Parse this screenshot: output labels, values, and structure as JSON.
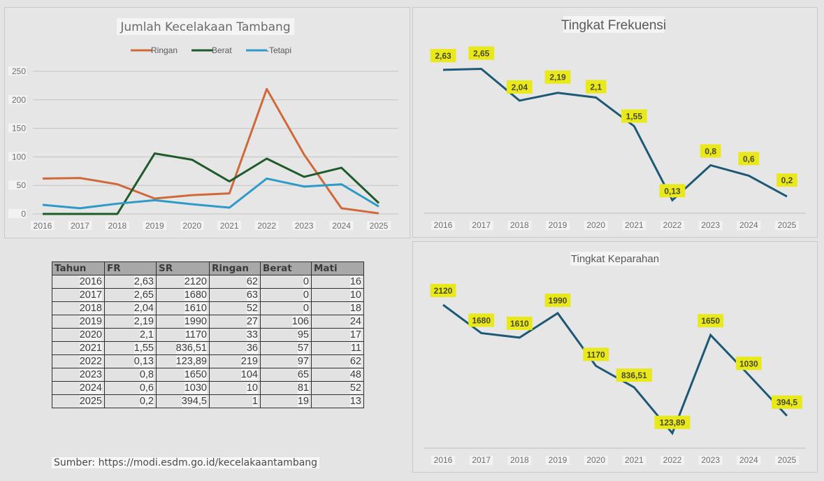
{
  "chart_data": [
    {
      "id": "jumlah",
      "type": "line",
      "title": "Jumlah Kecelakaan Tambang",
      "xlabel": "",
      "ylabel": "",
      "categories": [
        "2016",
        "2017",
        "2018",
        "2019",
        "2020",
        "2021",
        "2022",
        "2023",
        "2024",
        "2025"
      ],
      "ylim": [
        0,
        250
      ],
      "yticks": [
        "0",
        "50",
        "100",
        "150",
        "200",
        "250"
      ],
      "grid": true,
      "legend_position": "top",
      "series": [
        {
          "name": "Ringan",
          "color": "#d0693a",
          "values": [
            62,
            63,
            52,
            27,
            33,
            36,
            219,
            104,
            10,
            1
          ]
        },
        {
          "name": "Berat",
          "color": "#1f5a2a",
          "values": [
            0,
            0,
            0,
            106,
            95,
            57,
            97,
            65,
            81,
            19
          ]
        },
        {
          "name": "-Tetapi",
          "color": "#2e9ac8",
          "values": [
            16,
            10,
            18,
            24,
            17,
            11,
            62,
            48,
            52,
            13
          ]
        }
      ]
    },
    {
      "id": "frekuensi",
      "type": "line",
      "title": "Tingkat Frekuensi",
      "xlabel": "",
      "ylabel": "",
      "categories": [
        "2016",
        "2017",
        "2018",
        "2019",
        "2020",
        "2021",
        "2022",
        "2023",
        "2024",
        "2025"
      ],
      "grid": false,
      "legend_position": "none",
      "series": [
        {
          "name": "FR",
          "color": "#1d5874",
          "values": [
            2.63,
            2.65,
            2.04,
            2.19,
            2.1,
            1.55,
            0.13,
            0.8,
            0.6,
            0.2
          ],
          "labels": [
            "2,63",
            "2,65",
            "2,04",
            "2,19",
            "2,1",
            "1,55",
            "0,13",
            "0,8",
            "0,6",
            "0,2"
          ]
        }
      ]
    },
    {
      "id": "keparahan",
      "type": "line",
      "title": "Tingkat Keparahan",
      "xlabel": "",
      "ylabel": "",
      "categories": [
        "2016",
        "2017",
        "2018",
        "2019",
        "2020",
        "2021",
        "2022",
        "2023",
        "2024",
        "2025"
      ],
      "grid": false,
      "legend_position": "none",
      "series": [
        {
          "name": "SR",
          "color": "#1d5874",
          "values": [
            2120,
            1680,
            1610,
            1990,
            1170,
            836.51,
            123.89,
            1650,
            1030,
            394.5
          ],
          "labels": [
            "2120",
            "1680",
            "1610",
            "1990",
            "1170",
            "836,51",
            "123,89",
            "1650",
            "1030",
            "394,5"
          ]
        }
      ]
    }
  ],
  "label_highlight_color": "#e8e81a",
  "table": {
    "headers": [
      "Tahun",
      "FR",
      "SR",
      "Ringan",
      "Berat",
      "Mati"
    ],
    "rows": [
      [
        "2016",
        "2,63",
        "2120",
        "62",
        "0",
        "16"
      ],
      [
        "2017",
        "2,65",
        "1680",
        "63",
        "0",
        "10"
      ],
      [
        "2018",
        "2,04",
        "1610",
        "52",
        "0",
        "18"
      ],
      [
        "2019",
        "2,19",
        "1990",
        "27",
        "106",
        "24"
      ],
      [
        "2020",
        "2,1",
        "1170",
        "33",
        "95",
        "17"
      ],
      [
        "2021",
        "1,55",
        "836,51",
        "36",
        "57",
        "11"
      ],
      [
        "2022",
        "0,13",
        "123,89",
        "219",
        "97",
        "62"
      ],
      [
        "2023",
        "0,8",
        "1650",
        "104",
        "65",
        "48"
      ],
      [
        "2024",
        "0,6",
        "1030",
        "10",
        "81",
        "52"
      ],
      [
        "2025",
        "0,2",
        "394,5",
        "1",
        "19",
        "13"
      ]
    ]
  },
  "source": "Sumber:  https://modi.esdm.go.id/kecelakaantambang"
}
